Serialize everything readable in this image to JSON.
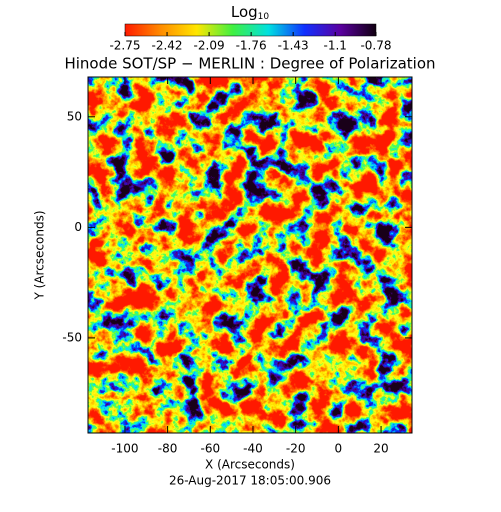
{
  "chart_data": {
    "type": "image",
    "title": "Hinode SOT/SP − MERLIN : Degree of Polarization",
    "colorbar_label": {
      "text": "Log",
      "subscript": "10"
    },
    "clim": [
      -2.75,
      -0.78
    ],
    "colorbar_ticks": [
      -2.75,
      -2.42,
      -2.09,
      -1.76,
      -1.43,
      -1.1,
      -0.78
    ],
    "colormap": [
      "#ff1a00",
      "#ff8c00",
      "#ffe600",
      "#40f040",
      "#00e0e0",
      "#1030ff",
      "#5a00a0",
      "#100010"
    ],
    "xlabel": "X (Arcseconds)",
    "ylabel": "Y (Arcseconds)",
    "xlim": [
      -117.3,
      34.5
    ],
    "ylim": [
      -93,
      68
    ],
    "xticks": [
      -100,
      -80,
      -60,
      -40,
      -20,
      0,
      20
    ],
    "yticks": [
      -50,
      0,
      50
    ],
    "footer": "26-Aug-2017 18:05:00.906"
  }
}
